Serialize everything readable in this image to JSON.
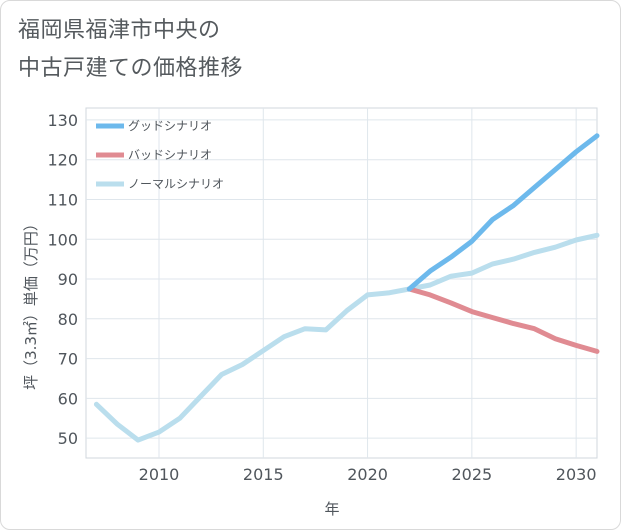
{
  "title_lines": [
    "福岡県福津市中央の",
    "中古戸建ての価格推移"
  ],
  "chart_data": {
    "type": "line",
    "title": "福岡県福津市中央の中古戸建ての価格推移",
    "xlabel": "年",
    "ylabel": "坪（3.3㎡）単価（万円）",
    "xlim": [
      2006.5,
      2031
    ],
    "ylim": [
      45,
      133
    ],
    "xticks": [
      2010,
      2015,
      2020,
      2025,
      2030
    ],
    "yticks": [
      50,
      60,
      70,
      80,
      90,
      100,
      110,
      120,
      130
    ],
    "legend_position": "top-left",
    "series": [
      {
        "name": "グッドシナリオ",
        "color": "#6db9ec",
        "x": [
          2022,
          2023,
          2024,
          2025,
          2026,
          2027,
          2028,
          2029,
          2030,
          2031
        ],
        "values": [
          87.5,
          92,
          95.5,
          99.5,
          105,
          108.5,
          113,
          117.5,
          122,
          126
        ]
      },
      {
        "name": "バッドシナリオ",
        "color": "#e08b92",
        "x": [
          2022,
          2023,
          2024,
          2025,
          2026,
          2027,
          2028,
          2029,
          2030,
          2031
        ],
        "values": [
          87.5,
          86,
          84,
          81.8,
          80.3,
          78.8,
          77.5,
          75,
          73.3,
          71.8
        ]
      },
      {
        "name": "ノーマルシナリオ",
        "color": "#badeed",
        "x": [
          2007,
          2008,
          2009,
          2010,
          2011,
          2012,
          2013,
          2014,
          2015,
          2016,
          2017,
          2018,
          2019,
          2020,
          2021,
          2022,
          2023,
          2024,
          2025,
          2026,
          2027,
          2028,
          2029,
          2030,
          2031
        ],
        "values": [
          58.5,
          53.5,
          49.5,
          51.5,
          55,
          60.5,
          66,
          68.5,
          72,
          75.5,
          77.5,
          77.2,
          82,
          86,
          86.5,
          87.5,
          88.5,
          90.7,
          91.5,
          93.8,
          95,
          96.7,
          98,
          99.8,
          101
        ]
      }
    ]
  }
}
